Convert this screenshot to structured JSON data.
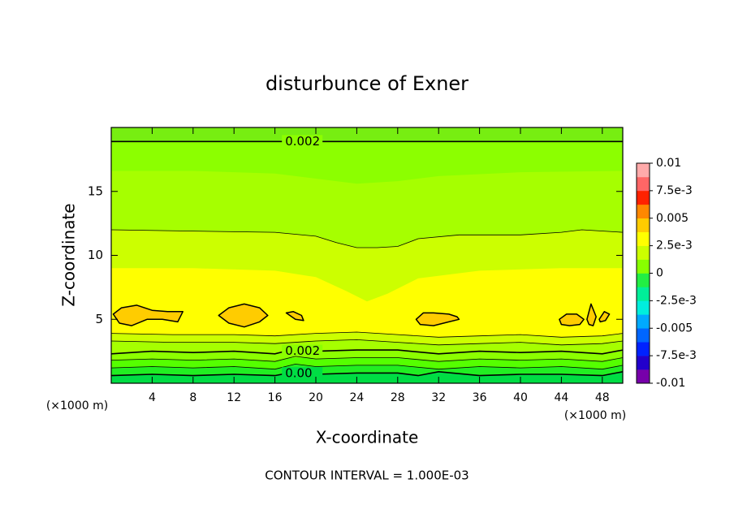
{
  "chart_data": {
    "type": "contour",
    "title": "disturbunce of Exner",
    "xlabel": "X-coordinate",
    "ylabel": "Z-coordinate",
    "x_unit": "(×1000 m)",
    "footer": "CONTOUR INTERVAL = 1.000E-03",
    "xlim": [
      0,
      50
    ],
    "ylim": [
      0,
      20
    ],
    "xticks": [
      4,
      8,
      12,
      16,
      20,
      24,
      28,
      32,
      36,
      40,
      44,
      48
    ],
    "yticks": [
      5,
      10,
      15
    ],
    "fill_color": "#77ee11",
    "layers": [
      {
        "color": "#8cff00",
        "line": true,
        "label": "0.002",
        "x": [
          0,
          50
        ],
        "z": [
          18.9,
          18.9
        ]
      },
      {
        "color": "#a6ff00",
        "line": false,
        "x": [
          0,
          8,
          16,
          20,
          24,
          28,
          32,
          40,
          50
        ],
        "z": [
          16.6,
          16.6,
          16.4,
          16.0,
          15.6,
          15.8,
          16.2,
          16.5,
          16.6
        ]
      },
      {
        "color": "#ccff00",
        "line": true,
        "x": [
          0,
          8,
          16,
          20,
          22,
          24,
          26,
          28,
          30,
          34,
          40,
          44,
          46,
          50
        ],
        "z": [
          12.0,
          11.9,
          11.8,
          11.5,
          11.0,
          10.6,
          10.6,
          10.7,
          11.3,
          11.6,
          11.6,
          11.8,
          12.0,
          11.8
        ]
      },
      {
        "color": "#ffff00",
        "line": false,
        "x": [
          0,
          8,
          16,
          20,
          23,
          25,
          27,
          30,
          36,
          44,
          50
        ],
        "z": [
          9.0,
          9.0,
          8.8,
          8.3,
          7.2,
          6.4,
          7.0,
          8.2,
          8.8,
          9.0,
          9.0
        ]
      },
      {
        "color": "#ccff00",
        "line": true,
        "x": [
          0,
          6,
          12,
          16,
          20,
          24,
          28,
          32,
          36,
          40,
          44,
          48,
          50
        ],
        "z": [
          3.9,
          3.8,
          3.8,
          3.7,
          3.9,
          4.0,
          3.8,
          3.6,
          3.7,
          3.8,
          3.6,
          3.7,
          3.9
        ]
      },
      {
        "color": "#a6ff00",
        "line": true,
        "x": [
          0,
          6,
          12,
          16,
          20,
          24,
          28,
          32,
          36,
          40,
          44,
          48,
          50
        ],
        "z": [
          3.3,
          3.2,
          3.2,
          3.1,
          3.3,
          3.4,
          3.2,
          3.0,
          3.1,
          3.2,
          3.0,
          3.1,
          3.3
        ]
      },
      {
        "color": "#8cff00",
        "line": true,
        "label": "0.002",
        "x": [
          0,
          4,
          8,
          12,
          16,
          18,
          20,
          24,
          28,
          32,
          36,
          40,
          44,
          48,
          50
        ],
        "z": [
          2.3,
          2.5,
          2.4,
          2.5,
          2.3,
          2.7,
          2.5,
          2.6,
          2.6,
          2.3,
          2.5,
          2.4,
          2.5,
          2.3,
          2.6
        ]
      },
      {
        "color": "#55ff00",
        "line": true,
        "x": [
          0,
          4,
          8,
          12,
          16,
          18,
          20,
          24,
          28,
          32,
          36,
          40,
          44,
          48,
          50
        ],
        "z": [
          1.8,
          1.9,
          1.8,
          1.9,
          1.7,
          2.1,
          1.9,
          2.0,
          2.0,
          1.7,
          1.9,
          1.8,
          1.9,
          1.7,
          2.0
        ]
      },
      {
        "color": "#22ee22",
        "line": true,
        "x": [
          0,
          4,
          8,
          12,
          16,
          18,
          20,
          24,
          28,
          32,
          36,
          40,
          44,
          48,
          50
        ],
        "z": [
          1.2,
          1.3,
          1.2,
          1.3,
          1.1,
          1.5,
          1.3,
          1.4,
          1.4,
          1.1,
          1.3,
          1.2,
          1.3,
          1.1,
          1.4
        ]
      },
      {
        "color": "#00dd44",
        "line": true,
        "label": "0.00",
        "x": [
          0,
          4,
          8,
          12,
          16,
          18,
          20,
          24,
          28,
          30,
          32,
          36,
          40,
          44,
          48,
          50
        ],
        "z": [
          0.6,
          0.7,
          0.6,
          0.7,
          0.6,
          0.9,
          0.7,
          0.8,
          0.8,
          0.6,
          0.9,
          0.6,
          0.7,
          0.7,
          0.6,
          0.9
        ]
      }
    ],
    "blob_color": "#ffcc00",
    "blobs": [
      {
        "x": [
          0.2,
          1,
          2.5,
          4,
          5.5,
          7,
          6.5,
          5,
          3.5,
          2,
          0.8
        ],
        "z": [
          5.4,
          5.9,
          6.1,
          5.7,
          5.6,
          5.6,
          4.8,
          5.0,
          5.0,
          4.5,
          4.7
        ]
      },
      {
        "x": [
          10.5,
          11.5,
          13,
          14.5,
          15.3,
          14.5,
          13,
          11.5
        ],
        "z": [
          5.3,
          5.9,
          6.2,
          5.9,
          5.3,
          4.8,
          4.4,
          4.7
        ]
      },
      {
        "x": [
          17.1,
          17.8,
          18.6,
          18.8,
          18.0
        ],
        "z": [
          5.5,
          5.6,
          5.3,
          4.9,
          5.0
        ]
      },
      {
        "x": [
          29.8,
          30.5,
          31.5,
          33,
          33.8,
          34,
          33,
          31.5,
          30.2
        ],
        "z": [
          5.0,
          5.5,
          5.5,
          5.4,
          5.2,
          5.0,
          4.8,
          4.5,
          4.6
        ]
      },
      {
        "x": [
          43.8,
          44.5,
          45.5,
          46.2,
          45.8,
          44.8,
          44
        ],
        "z": [
          5.0,
          5.4,
          5.4,
          5.0,
          4.6,
          4.5,
          4.6
        ]
      },
      {
        "x": [
          46.5,
          46.9,
          47.4,
          47.1,
          46.7
        ],
        "z": [
          5.0,
          6.2,
          5.2,
          4.5,
          4.6
        ]
      },
      {
        "x": [
          47.7,
          48.2,
          48.7,
          48.3,
          47.8
        ],
        "z": [
          5.0,
          5.6,
          5.4,
          4.9,
          4.8
        ]
      }
    ],
    "colorbar": {
      "lim": [
        -0.01,
        0.01
      ],
      "colors": [
        "#7700aa",
        "#2200cc",
        "#0022ff",
        "#0066ff",
        "#00aaff",
        "#00eedd",
        "#00ee99",
        "#22ee44",
        "#88ff00",
        "#ccff00",
        "#ffff00",
        "#ffcc00",
        "#ff8800",
        "#ff2200",
        "#ff6666",
        "#ffaaaa"
      ],
      "ticks": [
        0.01,
        {
          "value": 0.0075,
          "label": "7.5e-3"
        },
        0.005,
        {
          "value": 0.0025,
          "label": "2.5e-3"
        },
        0,
        {
          "value": -0.0025,
          "label": "-2.5e-3"
        },
        -0.005,
        {
          "value": -0.0075,
          "label": "-7.5e-3"
        },
        -0.01
      ]
    }
  }
}
